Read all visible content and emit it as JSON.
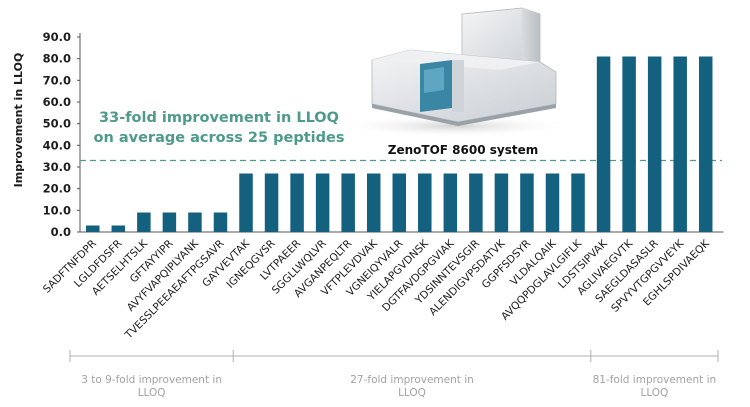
{
  "chart_data": {
    "type": "bar",
    "ylabel": "Improvement in LLOQ",
    "ylim": [
      0,
      90
    ],
    "yticks": [
      "0.0",
      "10.0",
      "20.0",
      "30.0",
      "40.0",
      "50.0",
      "60.0",
      "70.0",
      "80.0",
      "90.0"
    ],
    "grid": false,
    "categories": [
      "SADFTNFDPR",
      "LGLDFDSFR",
      "AETSELHTSLK",
      "GFTAYYIPR",
      "AVYFVAPQIPLYANK",
      "TVESSLPEEAEAFTPGSAVR",
      "GAYVEVTAK",
      "IGNEQGVSR",
      "LVTPAEER",
      "SGGLLWQLVR",
      "AVGANPEQLTR",
      "VFTPLEVDVAK",
      "VGNEIQYVALR",
      "YIELAPGVDNSK",
      "DGTFAVDGPGVIAK",
      "YDSINNTEVSGIR",
      "ALENDIGVPSDATVK",
      "GGPFSDSYR",
      "VLDALQAIK",
      "AVQQPDGLAVLGIFLK",
      "LDSTSIPVAK",
      "AGLIVAEGVTK",
      "SAEGLDASASLR",
      "SPVYVTGPGVVEYK",
      "EGHLSPDIVAEQK"
    ],
    "values": [
      3,
      3,
      9,
      9,
      9,
      9,
      27,
      27,
      27,
      27,
      27,
      27,
      27,
      27,
      27,
      27,
      27,
      27,
      27,
      27,
      81,
      81,
      81,
      81,
      81
    ],
    "bar_color": "#14607f",
    "reference_line": {
      "value": 33,
      "color": "#4e9a8b",
      "style": "dashed"
    },
    "annotation": {
      "line1": "33-fold improvement in LLOQ",
      "line2": "on average across 25 peptides",
      "color": "#4e9a8b"
    },
    "product_caption": "ZenoTOF 8600 system",
    "groups": [
      {
        "label_line1": "3 to 9-fold improvement in",
        "label_line2": "LLOQ",
        "start_index": 0,
        "end_index": 5
      },
      {
        "label_line1": "27-fold improvement in",
        "label_line2": "LLOQ",
        "start_index": 6,
        "end_index": 19
      },
      {
        "label_line1": "81-fold improvement in",
        "label_line2": "LLOQ",
        "start_index": 20,
        "end_index": 24
      }
    ]
  }
}
